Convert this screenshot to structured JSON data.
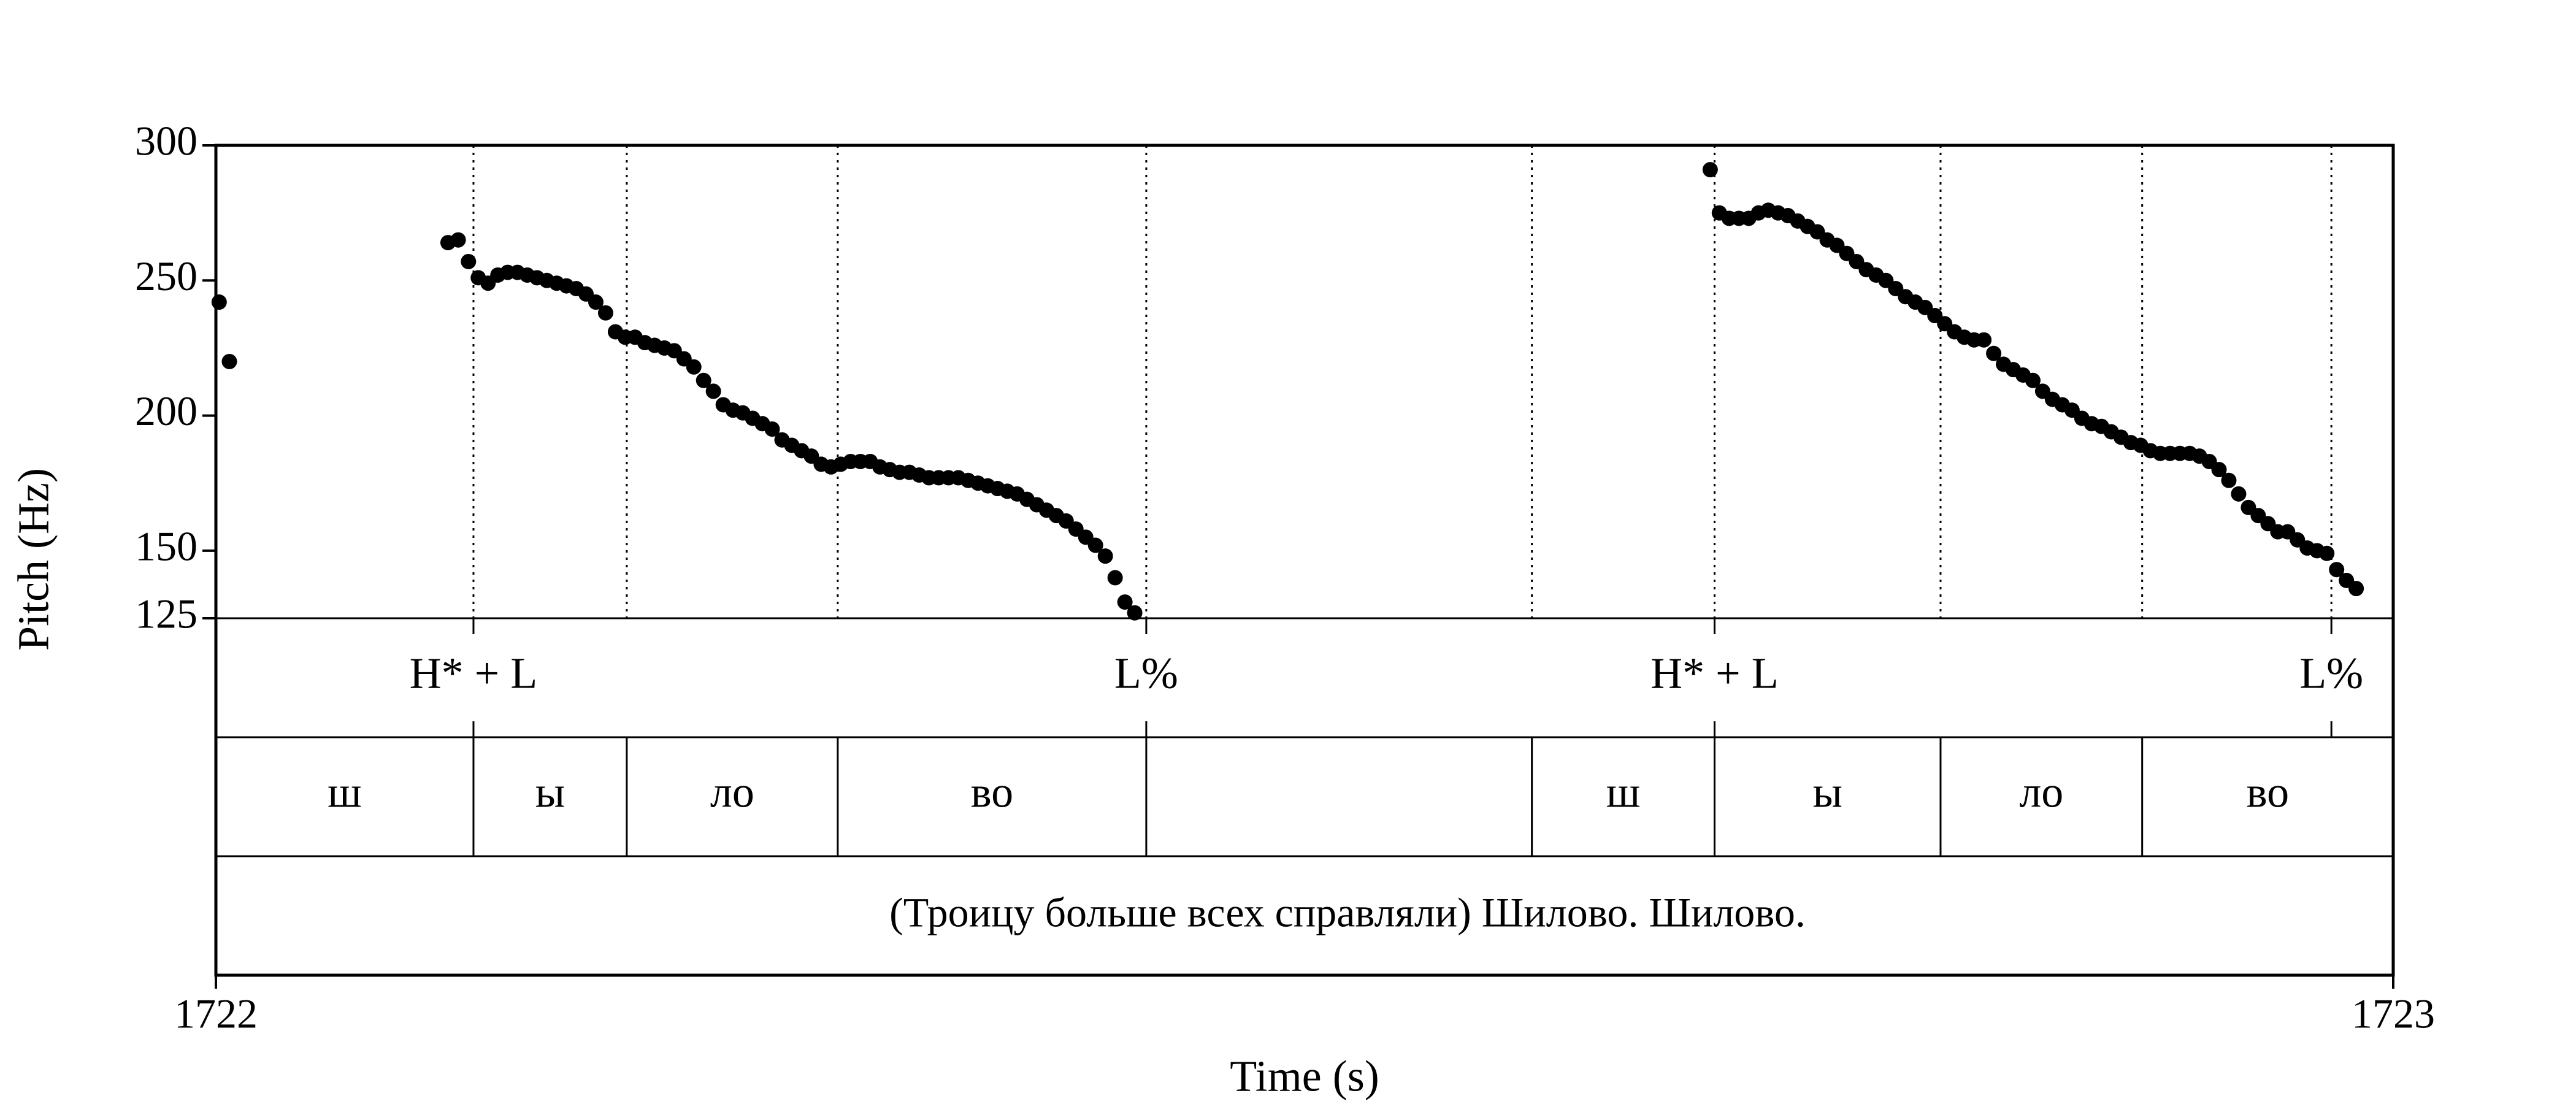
{
  "chart_data": {
    "type": "scatter",
    "title": "",
    "xlabel": "Time (s)",
    "ylabel": "Pitch (Hz)",
    "xlim": [
      1722,
      1723
    ],
    "ylim": [
      125,
      300
    ],
    "x_ticks": [
      "1722",
      "1723"
    ],
    "y_ticks": [
      {
        "value": 300,
        "label": "300"
      },
      {
        "value": 250,
        "label": "250"
      },
      {
        "value": 200,
        "label": "200"
      },
      {
        "value": 150,
        "label": "150"
      },
      {
        "value": 125,
        "label": "125"
      }
    ],
    "grid": false,
    "boundaries": [
      1722.1183,
      1722.1887,
      1722.2856,
      1722.4273,
      1722.6044,
      1722.6883,
      1722.7921,
      1722.8847,
      1722.9716
    ],
    "tones": [
      {
        "label": "H* + L",
        "x": 1722.1183
      },
      {
        "label": "L%",
        "x": 1722.4273
      },
      {
        "label": "H* + L",
        "x": 1722.6883
      },
      {
        "label": "L%",
        "x": 1722.9716
      }
    ],
    "syllables": [
      {
        "label": "ш",
        "start": 1722.0,
        "end": 1722.1183
      },
      {
        "label": "ы",
        "start": 1722.1183,
        "end": 1722.1887
      },
      {
        "label": "ло",
        "start": 1722.1887,
        "end": 1722.2856
      },
      {
        "label": "во",
        "start": 1722.2856,
        "end": 1722.4273
      },
      {
        "label": "",
        "start": 1722.4273,
        "end": 1722.6044
      },
      {
        "label": "ш",
        "start": 1722.6044,
        "end": 1722.6883
      },
      {
        "label": "ы",
        "start": 1722.6883,
        "end": 1722.7921
      },
      {
        "label": "ло",
        "start": 1722.7921,
        "end": 1722.8847
      },
      {
        "label": "во",
        "start": 1722.8847,
        "end": 1723.0
      }
    ],
    "utterance": "(Троицу больше всех справляли) Шилово. Шилово.",
    "series": [
      {
        "points": [
          [
            1722.0015,
            242
          ],
          [
            1722.0062,
            220
          ],
          [
            1722.1066,
            264
          ],
          [
            1722.1113,
            265
          ],
          [
            1722.116,
            257
          ],
          [
            1722.1205,
            251
          ],
          [
            1722.125,
            249
          ],
          [
            1722.1295,
            252
          ],
          [
            1722.134,
            253
          ],
          [
            1722.1385,
            253
          ],
          [
            1722.143,
            252
          ],
          [
            1722.1475,
            251
          ],
          [
            1722.152,
            250
          ],
          [
            1722.1565,
            249
          ],
          [
            1722.161,
            248
          ],
          [
            1722.1655,
            247
          ],
          [
            1722.17,
            245
          ],
          [
            1722.1745,
            242
          ],
          [
            1722.179,
            238
          ],
          [
            1722.1835,
            231
          ],
          [
            1722.188,
            229
          ],
          [
            1722.1925,
            229
          ],
          [
            1722.197,
            227
          ],
          [
            1722.2015,
            226
          ],
          [
            1722.206,
            225
          ],
          [
            1722.2105,
            224
          ],
          [
            1722.215,
            221
          ],
          [
            1722.2195,
            218
          ],
          [
            1722.224,
            213
          ],
          [
            1722.2285,
            209
          ],
          [
            1722.233,
            204
          ],
          [
            1722.2375,
            202
          ],
          [
            1722.242,
            201
          ],
          [
            1722.2465,
            199
          ],
          [
            1722.251,
            197
          ],
          [
            1722.2555,
            195
          ],
          [
            1722.26,
            191
          ],
          [
            1722.2645,
            189
          ],
          [
            1722.269,
            187
          ],
          [
            1722.2735,
            185
          ],
          [
            1722.278,
            182
          ],
          [
            1722.2825,
            181
          ],
          [
            1722.287,
            182
          ],
          [
            1722.2915,
            183
          ],
          [
            1722.296,
            183
          ],
          [
            1722.3005,
            183
          ],
          [
            1722.305,
            181
          ],
          [
            1722.3095,
            180
          ],
          [
            1722.314,
            179
          ],
          [
            1722.3185,
            179
          ],
          [
            1722.323,
            178
          ],
          [
            1722.3275,
            177
          ],
          [
            1722.332,
            177
          ],
          [
            1722.3365,
            177
          ],
          [
            1722.341,
            177
          ],
          [
            1722.3455,
            176
          ],
          [
            1722.35,
            175
          ],
          [
            1722.3545,
            174
          ],
          [
            1722.359,
            173
          ],
          [
            1722.3635,
            172
          ],
          [
            1722.368,
            171
          ],
          [
            1722.3725,
            169
          ],
          [
            1722.377,
            167
          ],
          [
            1722.3815,
            165
          ],
          [
            1722.386,
            163
          ],
          [
            1722.3905,
            161
          ],
          [
            1722.395,
            158
          ],
          [
            1722.3995,
            155
          ],
          [
            1722.404,
            152
          ],
          [
            1722.4085,
            148
          ],
          [
            1722.413,
            140
          ],
          [
            1722.4175,
            131
          ],
          [
            1722.422,
            127
          ],
          [
            1722.6863,
            291
          ],
          [
            1722.6905,
            275
          ],
          [
            1722.695,
            273
          ],
          [
            1722.6995,
            273
          ],
          [
            1722.704,
            273
          ],
          [
            1722.7085,
            275
          ],
          [
            1722.713,
            276
          ],
          [
            1722.7175,
            275
          ],
          [
            1722.722,
            274
          ],
          [
            1722.7265,
            272
          ],
          [
            1722.731,
            270
          ],
          [
            1722.7355,
            268
          ],
          [
            1722.74,
            265
          ],
          [
            1722.7445,
            263
          ],
          [
            1722.749,
            260
          ],
          [
            1722.7535,
            257
          ],
          [
            1722.758,
            254
          ],
          [
            1722.7625,
            252
          ],
          [
            1722.767,
            250
          ],
          [
            1722.7715,
            247
          ],
          [
            1722.776,
            244
          ],
          [
            1722.7805,
            242
          ],
          [
            1722.785,
            240
          ],
          [
            1722.7895,
            237
          ],
          [
            1722.794,
            234
          ],
          [
            1722.7985,
            231
          ],
          [
            1722.803,
            229
          ],
          [
            1722.8075,
            228
          ],
          [
            1722.812,
            228
          ],
          [
            1722.8165,
            223
          ],
          [
            1722.821,
            219
          ],
          [
            1722.8255,
            217
          ],
          [
            1722.83,
            215
          ],
          [
            1722.8345,
            213
          ],
          [
            1722.839,
            209
          ],
          [
            1722.8435,
            206
          ],
          [
            1722.848,
            204
          ],
          [
            1722.8525,
            202
          ],
          [
            1722.857,
            199
          ],
          [
            1722.8615,
            197
          ],
          [
            1722.866,
            196
          ],
          [
            1722.8705,
            194
          ],
          [
            1722.875,
            192
          ],
          [
            1722.8795,
            190
          ],
          [
            1722.884,
            189
          ],
          [
            1722.8885,
            187
          ],
          [
            1722.893,
            186
          ],
          [
            1722.8975,
            186
          ],
          [
            1722.902,
            186
          ],
          [
            1722.9065,
            186
          ],
          [
            1722.911,
            185
          ],
          [
            1722.9155,
            183
          ],
          [
            1722.92,
            180
          ],
          [
            1722.9245,
            176
          ],
          [
            1722.929,
            171
          ],
          [
            1722.9335,
            166
          ],
          [
            1722.938,
            163
          ],
          [
            1722.9425,
            160
          ],
          [
            1722.947,
            157
          ],
          [
            1722.9515,
            157
          ],
          [
            1722.956,
            154
          ],
          [
            1722.9605,
            151
          ],
          [
            1722.965,
            150
          ],
          [
            1722.9695,
            149
          ],
          [
            1722.974,
            143
          ],
          [
            1722.9785,
            139
          ],
          [
            1722.983,
            136
          ]
        ]
      }
    ]
  }
}
